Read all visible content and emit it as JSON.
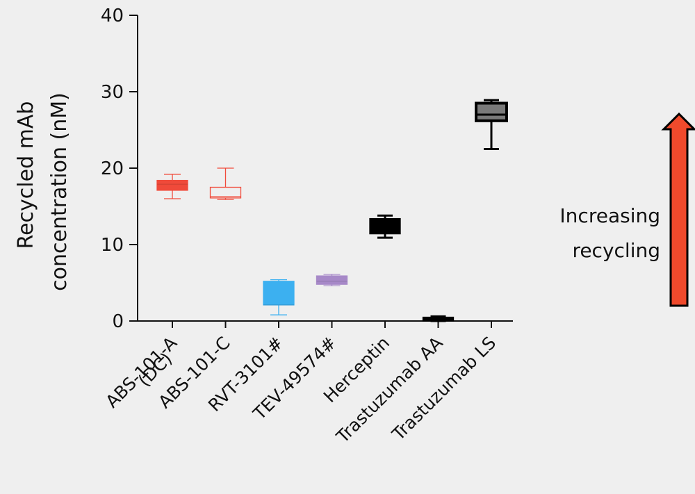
{
  "chart_data": {
    "type": "box",
    "ylabel_line1": "Recycled mAb",
    "ylabel_line2": "concentration (nM)",
    "ylim": [
      0,
      40
    ],
    "yticks": [
      0,
      10,
      20,
      30,
      40
    ],
    "grid": false,
    "categories": [
      {
        "label_line1": "ABS-101-A",
        "label_line2": "(DC)"
      },
      {
        "label_line1": "ABS-101-C",
        "label_line2": ""
      },
      {
        "label_line1": "RVT-3101#",
        "label_line2": ""
      },
      {
        "label_line1": "TEV-49574#",
        "label_line2": ""
      },
      {
        "label_line1": "Herceptin",
        "label_line2": ""
      },
      {
        "label_line1": "Trastuzumab AA",
        "label_line2": ""
      },
      {
        "label_line1": "Trastuzumab LS",
        "label_line2": ""
      }
    ],
    "series": [
      {
        "min": 16.0,
        "q1": 17.1,
        "median": 17.9,
        "q3": 18.4,
        "max": 19.2,
        "color": "#f04a3a",
        "style": "filled"
      },
      {
        "min": 15.9,
        "q1": 16.1,
        "median": 16.3,
        "q3": 17.5,
        "max": 20.0,
        "color": "#f04a3a",
        "style": "outline"
      },
      {
        "min": 0.8,
        "q1": 2.1,
        "median": 2.1,
        "q3": 5.2,
        "max": 5.4,
        "color": "#3cb0f0",
        "style": "filled"
      },
      {
        "min": 4.6,
        "q1": 4.8,
        "median": 5.2,
        "q3": 5.9,
        "max": 6.1,
        "color": "#a789c8",
        "style": "filled"
      },
      {
        "min": 10.9,
        "q1": 11.4,
        "median": 12.1,
        "q3": 13.4,
        "max": 13.8,
        "color": "#000000",
        "style": "filled"
      },
      {
        "min": 0.0,
        "q1": 0.0,
        "median": 0.2,
        "q3": 0.5,
        "max": 0.6,
        "color": "#000000",
        "style": "filled"
      },
      {
        "min": 22.5,
        "q1": 26.2,
        "median": 27.0,
        "q3": 28.5,
        "max": 28.9,
        "color": "#000000",
        "style": "outline-gray"
      }
    ]
  },
  "annotation": {
    "line1": "Increasing",
    "line2": "recycling",
    "arrow_color": "#f04a2c"
  }
}
